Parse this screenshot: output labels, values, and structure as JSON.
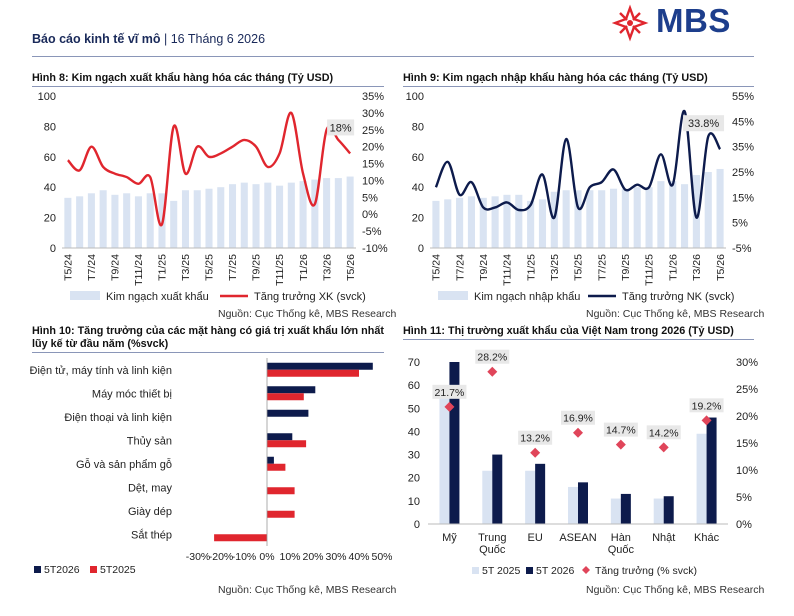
{
  "header": {
    "report_title": "Báo cáo kinh tế vĩ mô",
    "separator": " | ",
    "date": "16 Tháng 6 2026",
    "brand": "MBS",
    "brand_color": "#1d3e8c",
    "logo_color": "#e0262e"
  },
  "colors": {
    "export_line": "#e0262e",
    "import_line": "#0d1b4c",
    "light_bar": "#d9e3f2",
    "dark_bar": "#0d1b4c",
    "red_bar": "#e0262e",
    "diamond": "#e0455a"
  },
  "figures": {
    "fig8": {
      "title": "Hình 8: Kim ngạch xuất khẩu hàng hóa các tháng (Tỷ USD)",
      "source": "Nguồn: Cục Thống kê, MBS Research"
    },
    "fig9": {
      "title": "Hình 9: Kim ngạch nhập khẩu hàng hóa các tháng (Tỷ USD)",
      "source": "Nguồn: Cục Thống kê, MBS Research"
    },
    "fig10": {
      "title_line1": "Hình 10: Tăng trưởng của các mặt hàng có giá trị xuất khẩu lớn nhất",
      "title_line2": "lũy kế từ đầu năm (%svck)",
      "source": "Nguồn: Cục Thống kê, MBS Research"
    },
    "fig11": {
      "title": "Hình 11: Thị trường xuất khẩu của Việt Nam trong 2026 (Tỷ USD)",
      "source": "Nguồn: Cục Thống kê, MBS Research"
    }
  },
  "chart_data": [
    {
      "id": "fig8",
      "type": "bar+line",
      "categories": [
        "T5/24",
        "T6/24",
        "T7/24",
        "T8/24",
        "T9/24",
        "T10/24",
        "T11/24",
        "T12/24",
        "T1/25",
        "T2/25",
        "T3/25",
        "T4/25",
        "T5/25",
        "T6/25",
        "T7/25",
        "T8/25",
        "T9/25",
        "T10/25",
        "T11/25",
        "T12/25",
        "T1/26",
        "T2/26",
        "T3/26",
        "T4/26",
        "T5/26"
      ],
      "x_tick_labels": [
        "T5/24",
        "T7/24",
        "T9/24",
        "T11/24",
        "T1/25",
        "T3/25",
        "T5/25",
        "T7/25",
        "T9/25",
        "T11/25",
        "T1/26",
        "T3/26",
        "T5/26"
      ],
      "series": [
        {
          "name": "Kim ngạch xuất khẩu",
          "kind": "bar",
          "axis": "left",
          "values": [
            33,
            34,
            36,
            38,
            35,
            36,
            34,
            36,
            36,
            31,
            38,
            38,
            39,
            40,
            42,
            43,
            42,
            43,
            41,
            43,
            44,
            45,
            46,
            46,
            47
          ]
        },
        {
          "name": "Tăng trưởng XK (svck)",
          "kind": "line",
          "axis": "right",
          "values": [
            16,
            13,
            20,
            14,
            12,
            11,
            9,
            11,
            -3,
            26,
            12,
            20,
            17,
            18,
            20,
            22,
            20,
            14,
            18,
            30,
            12,
            3,
            25,
            22,
            18
          ]
        }
      ],
      "annotation": "18%",
      "ylim_left": [
        0,
        100
      ],
      "ylim_right": [
        -10,
        35
      ],
      "left_ticks": [
        "0",
        "20",
        "40",
        "60",
        "80",
        "100"
      ],
      "right_ticks": [
        "-10%",
        "-5%",
        "0%",
        "5%",
        "10%",
        "15%",
        "20%",
        "25%",
        "30%",
        "35%"
      ]
    },
    {
      "id": "fig9",
      "type": "bar+line",
      "categories": [
        "T5/24",
        "T6/24",
        "T7/24",
        "T8/24",
        "T9/24",
        "T10/24",
        "T11/24",
        "T12/24",
        "T1/25",
        "T2/25",
        "T3/25",
        "T4/25",
        "T5/25",
        "T6/25",
        "T7/25",
        "T8/25",
        "T9/25",
        "T10/25",
        "T11/25",
        "T12/25",
        "T1/26",
        "T2/26",
        "T3/26",
        "T4/26",
        "T5/26"
      ],
      "x_tick_labels": [
        "T5/24",
        "T7/24",
        "T9/24",
        "T11/24",
        "T1/25",
        "T3/25",
        "T5/25",
        "T7/25",
        "T9/25",
        "T11/25",
        "T1/26",
        "T3/26",
        "T5/26"
      ],
      "series": [
        {
          "name": "Kim ngạch nhập khẩu",
          "kind": "bar",
          "axis": "left",
          "values": [
            31,
            32,
            33,
            34,
            33,
            34,
            35,
            35,
            31,
            32,
            37,
            38,
            38,
            38,
            38,
            39,
            39,
            40,
            40,
            44,
            44,
            42,
            48,
            50,
            52
          ]
        },
        {
          "name": "Tăng trưởng NK (svck)",
          "kind": "line",
          "axis": "right",
          "values": [
            19,
            29,
            16,
            21,
            11,
            11,
            13,
            10,
            12,
            24,
            7,
            38,
            11,
            19,
            21,
            26,
            18,
            20,
            19,
            32,
            20,
            49,
            7,
            39,
            34
          ]
        }
      ],
      "annotation": "33.8%",
      "ylim_left": [
        0,
        100
      ],
      "ylim_right": [
        -5,
        55
      ],
      "left_ticks": [
        "0",
        "20",
        "40",
        "60",
        "80",
        "100"
      ],
      "right_ticks": [
        "-5%",
        "5%",
        "15%",
        "25%",
        "35%",
        "45%",
        "55%"
      ]
    },
    {
      "id": "fig10",
      "type": "bar",
      "orientation": "horizontal",
      "categories": [
        "Điện tử, máy tính và linh kiện",
        "Máy móc thiết bị",
        "Điện thoại và linh kiện",
        "Thủy sản",
        "Gỗ và sản phẩm gỗ",
        "Dệt, may",
        "Giày dép",
        "Sắt thép"
      ],
      "series": [
        {
          "name": "5T2026",
          "values": [
            46,
            21,
            18,
            11,
            3,
            0,
            0,
            0
          ]
        },
        {
          "name": "5T2025",
          "values": [
            40,
            16,
            0,
            17,
            8,
            12,
            12,
            -23
          ]
        }
      ],
      "xlim": [
        -30,
        50
      ],
      "x_ticks": [
        "-30%",
        "-20%",
        "-10%",
        "0%",
        "10%",
        "20%",
        "30%",
        "40%",
        "50%"
      ]
    },
    {
      "id": "fig11",
      "type": "bar+scatter",
      "categories": [
        "Mỹ",
        "Trung Quốc",
        "EU",
        "ASEAN",
        "Hàn Quốc",
        "Nhật",
        "Khác"
      ],
      "category_lines": [
        [
          "Mỹ"
        ],
        [
          "Trung",
          "Quốc"
        ],
        [
          "EU"
        ],
        [
          "ASEAN"
        ],
        [
          "Hàn",
          "Quốc"
        ],
        [
          "Nhật"
        ],
        [
          "Khác"
        ]
      ],
      "series": [
        {
          "name": "5T 2025",
          "kind": "bar",
          "values": [
            55,
            23,
            23,
            16,
            11,
            11,
            39
          ]
        },
        {
          "name": "5T 2026",
          "kind": "bar",
          "values": [
            70,
            30,
            26,
            18,
            13,
            12,
            46
          ]
        },
        {
          "name": "Tăng trưởng (% svck)",
          "kind": "scatter",
          "axis": "right",
          "values": [
            21.7,
            28.2,
            13.2,
            16.9,
            14.7,
            14.2,
            19.2
          ],
          "labels": [
            "21.7%",
            "28.2%",
            "13.2%",
            "16.9%",
            "14.7%",
            "14.2%",
            "19.2%"
          ]
        }
      ],
      "ylim_left": [
        0,
        70
      ],
      "ylim_right": [
        0,
        30
      ],
      "left_ticks": [
        "0",
        "10",
        "20",
        "30",
        "40",
        "50",
        "60",
        "70"
      ],
      "right_ticks": [
        "0%",
        "5%",
        "10%",
        "15%",
        "20%",
        "25%",
        "30%"
      ]
    }
  ]
}
